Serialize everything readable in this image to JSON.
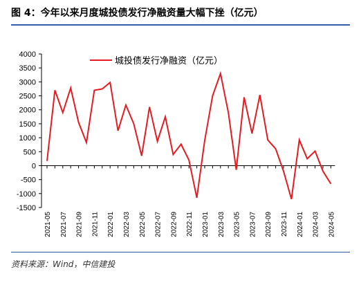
{
  "figure": {
    "title": "图 4：今年以来月度城投债发行净融资量大幅下挫（亿元）",
    "source": "资料来源：Wind，中信建投"
  },
  "colors": {
    "series": "#e8191f",
    "rule": "#2e5aa8",
    "axis": "#000000"
  },
  "chart_data": {
    "type": "line",
    "ylim": [
      -1500,
      4000
    ],
    "yticks": [
      4000,
      3500,
      3000,
      2500,
      2000,
      1500,
      1000,
      500,
      0,
      -500,
      -1000,
      -1500
    ],
    "x": [
      "2021-05",
      "2021-06",
      "2021-07",
      "2021-08",
      "2021-09",
      "2021-10",
      "2021-11",
      "2021-12",
      "2022-01",
      "2022-02",
      "2022-03",
      "2022-04",
      "2022-05",
      "2022-06",
      "2022-07",
      "2022-08",
      "2022-09",
      "2022-10",
      "2022-11",
      "2022-12",
      "2023-01",
      "2023-02",
      "2023-03",
      "2023-04",
      "2023-05",
      "2023-06",
      "2023-07",
      "2023-08",
      "2023-09",
      "2023-10",
      "2023-11",
      "2023-12",
      "2024-01",
      "2024-02",
      "2024-03",
      "2024-04",
      "2024-05"
    ],
    "xtick_labels": [
      "2021-05",
      "2021-07",
      "2021-09",
      "2021-11",
      "2022-01",
      "2022-03",
      "2022-05",
      "2022-07",
      "2022-09",
      "2022-11",
      "2023-01",
      "2023-03",
      "2023-05",
      "2023-07",
      "2023-09",
      "2023-11",
      "2024-01",
      "2024-03",
      "2024-05"
    ],
    "series": [
      {
        "name": "城投债发行净融资（亿元）",
        "values": [
          170,
          2700,
          1900,
          2780,
          1550,
          830,
          2700,
          2750,
          2980,
          1250,
          2170,
          1500,
          350,
          2100,
          870,
          1750,
          400,
          770,
          200,
          -1150,
          900,
          2500,
          3300,
          1900,
          -150,
          2450,
          1150,
          2530,
          920,
          600,
          -200,
          -1200,
          920,
          250,
          520,
          -200,
          -650
        ]
      }
    ],
    "legend": "top-center",
    "grid": false
  }
}
